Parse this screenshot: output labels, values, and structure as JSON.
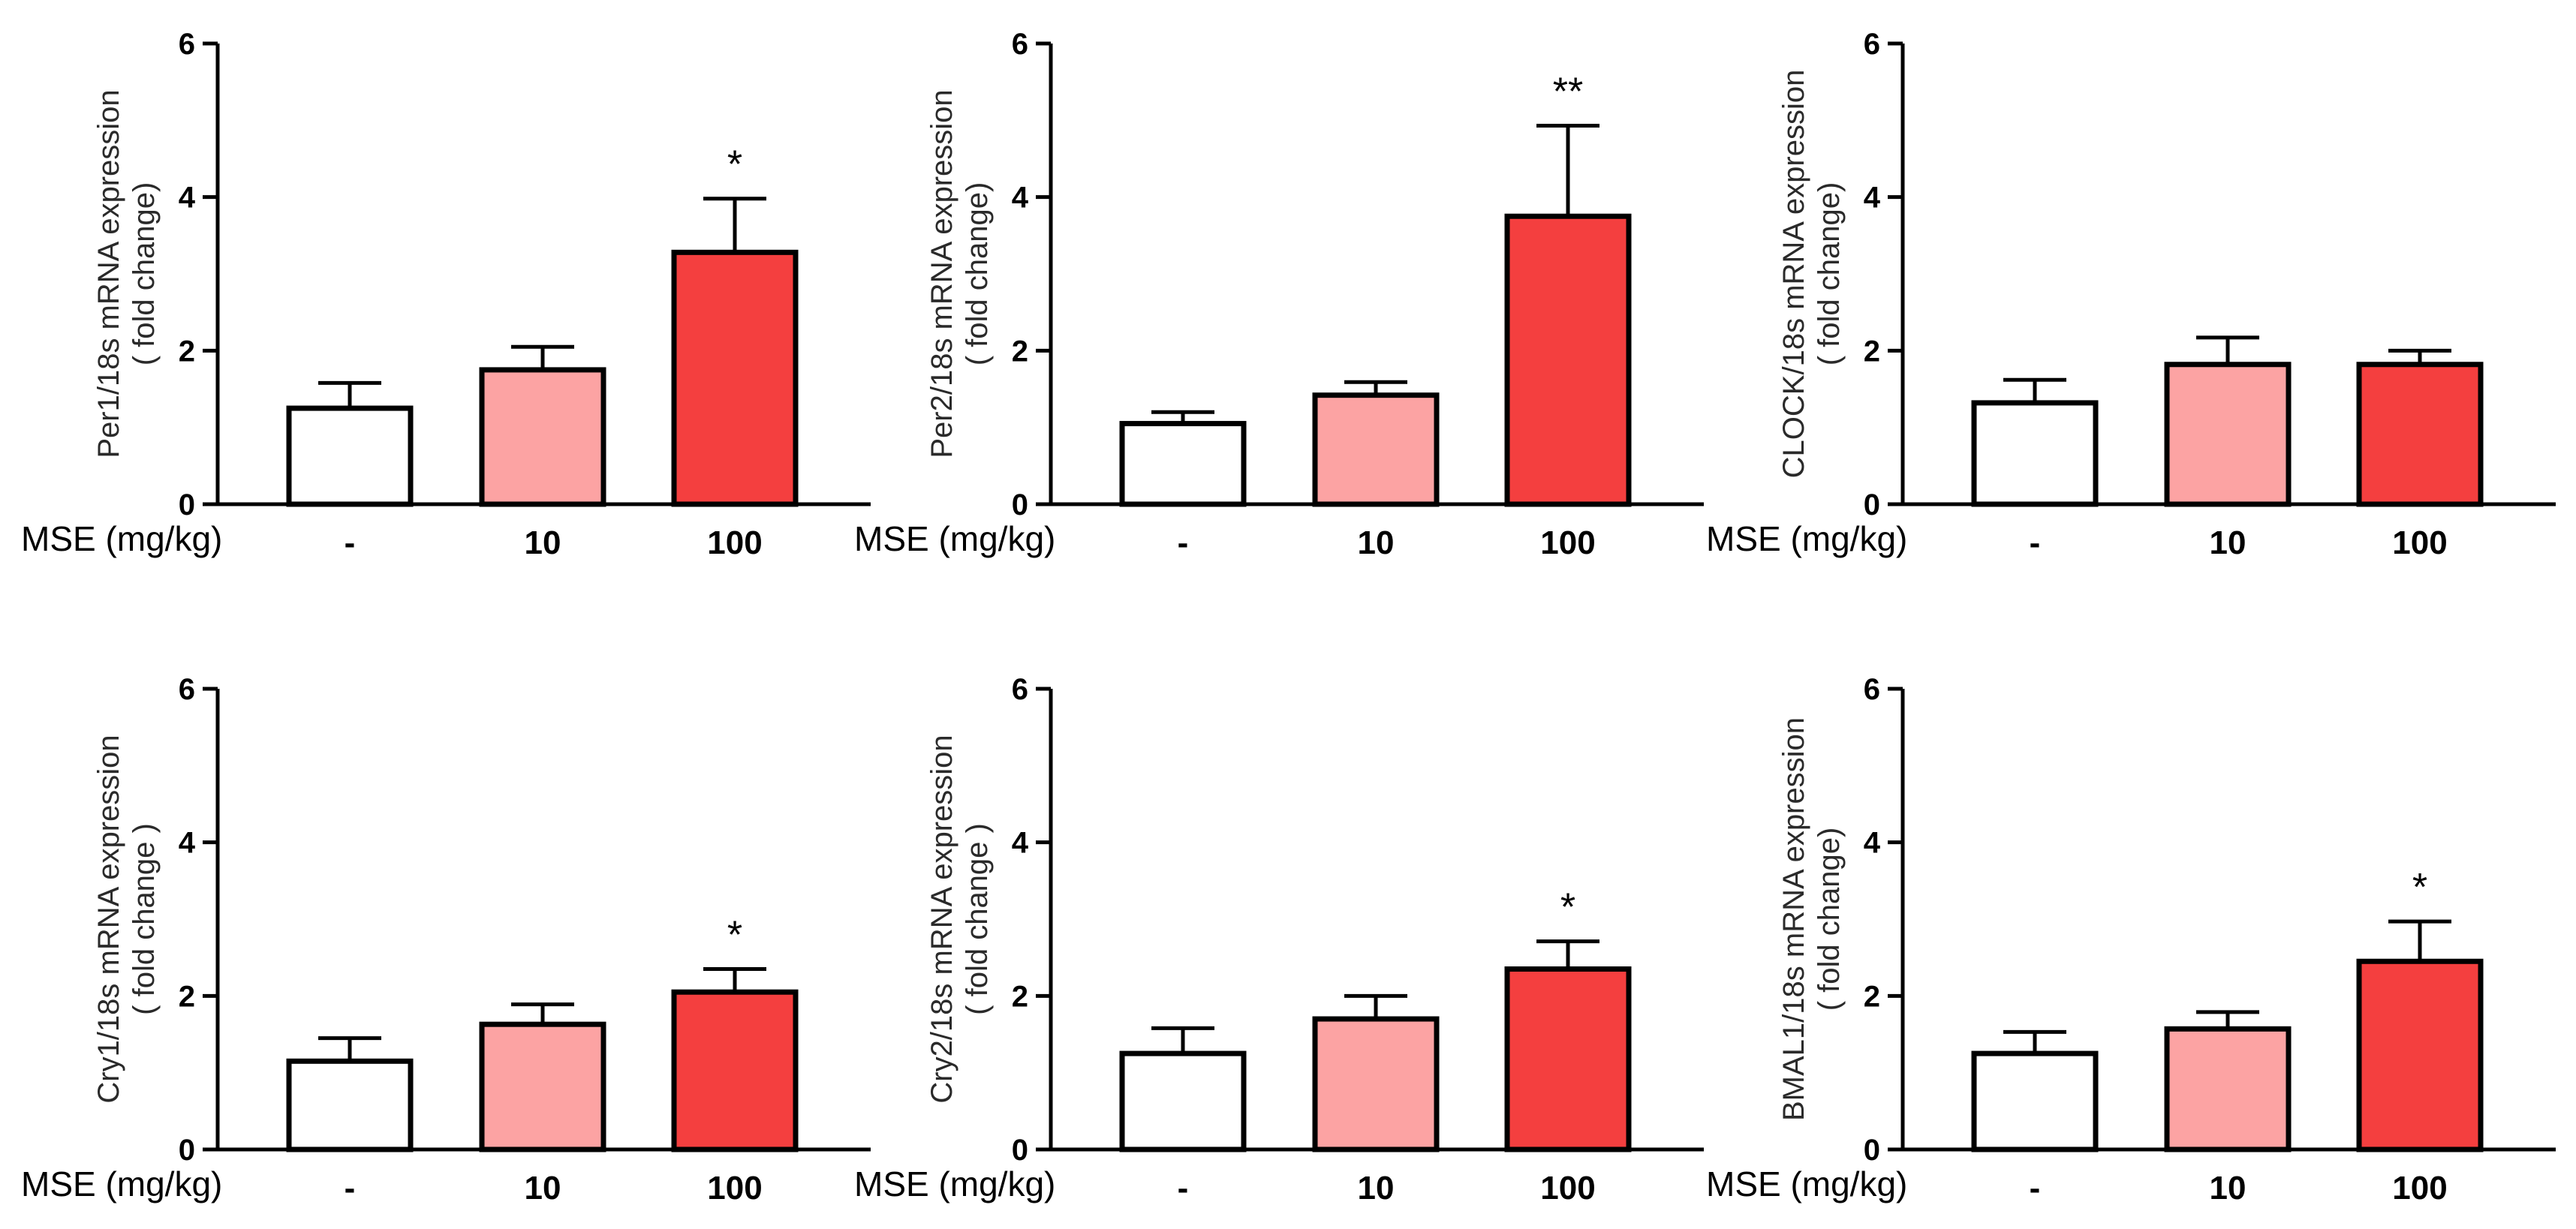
{
  "colors": {
    "control": "#ffffff",
    "low_dose": "#fca3a3",
    "high_dose": "#f43f3f",
    "axis": "#000000"
  },
  "chart_data": [
    {
      "type": "bar",
      "panel": "Per1",
      "ylabel": "Per1/18s mRNA expression",
      "ylabel2": "( fold change)",
      "xgroup_label": "MSE (mg/kg)",
      "categories": [
        "-",
        "10",
        "100"
      ],
      "values": [
        1.25,
        1.75,
        3.28
      ],
      "errors": [
        0.33,
        0.3,
        0.7
      ],
      "significance": [
        "",
        "",
        "*"
      ],
      "ylim": [
        0,
        6
      ],
      "yticks": [
        "0",
        "2",
        "4",
        "6"
      ]
    },
    {
      "type": "bar",
      "panel": "Per2",
      "ylabel": "Per2/18s mRNA expression",
      "ylabel2": "( fold change)",
      "xgroup_label": "MSE (mg/kg)",
      "categories": [
        "-",
        "10",
        "100"
      ],
      "values": [
        1.05,
        1.42,
        3.75
      ],
      "errors": [
        0.15,
        0.17,
        1.18
      ],
      "significance": [
        "",
        "",
        "**"
      ],
      "ylim": [
        0,
        6
      ],
      "yticks": [
        "0",
        "2",
        "4",
        "6"
      ]
    },
    {
      "type": "bar",
      "panel": "CLOCK",
      "ylabel": "CLOCK/18s mRNA expression",
      "ylabel2": "( fold change)",
      "xgroup_label": "MSE (mg/kg)",
      "categories": [
        "-",
        "10",
        "100"
      ],
      "values": [
        1.32,
        1.82,
        1.82
      ],
      "errors": [
        0.3,
        0.35,
        0.18
      ],
      "significance": [
        "",
        "",
        ""
      ],
      "ylim": [
        0,
        6
      ],
      "yticks": [
        "0",
        "2",
        "4",
        "6"
      ]
    },
    {
      "type": "bar",
      "panel": "Cry1",
      "ylabel": "Cry1/18s mRNA expression",
      "ylabel2": "( fold change )",
      "xgroup_label": "MSE (mg/kg)",
      "categories": [
        "-",
        "10",
        "100"
      ],
      "values": [
        1.15,
        1.63,
        2.05
      ],
      "errors": [
        0.3,
        0.26,
        0.3
      ],
      "significance": [
        "",
        "",
        "*"
      ],
      "ylim": [
        0,
        6
      ],
      "yticks": [
        "0",
        "2",
        "4",
        "6"
      ]
    },
    {
      "type": "bar",
      "panel": "Cry2",
      "ylabel": "Cry2/18s mRNA expression",
      "ylabel2": "( fold change )",
      "xgroup_label": "MSE (mg/kg)",
      "categories": [
        "-",
        "10",
        "100"
      ],
      "values": [
        1.25,
        1.7,
        2.35
      ],
      "errors": [
        0.33,
        0.3,
        0.36
      ],
      "significance": [
        "",
        "",
        "*"
      ],
      "ylim": [
        0,
        6
      ],
      "yticks": [
        "0",
        "2",
        "4",
        "6"
      ]
    },
    {
      "type": "bar",
      "panel": "BMAL1",
      "ylabel": "BMAL1/18s mRNA expression",
      "ylabel2": "( fold change)",
      "xgroup_label": "MSE (mg/kg)",
      "categories": [
        "-",
        "10",
        "100"
      ],
      "values": [
        1.25,
        1.57,
        2.45
      ],
      "errors": [
        0.28,
        0.22,
        0.52
      ],
      "significance": [
        "",
        "",
        "*"
      ],
      "ylim": [
        0,
        6
      ],
      "yticks": [
        "0",
        "2",
        "4",
        "6"
      ]
    }
  ]
}
